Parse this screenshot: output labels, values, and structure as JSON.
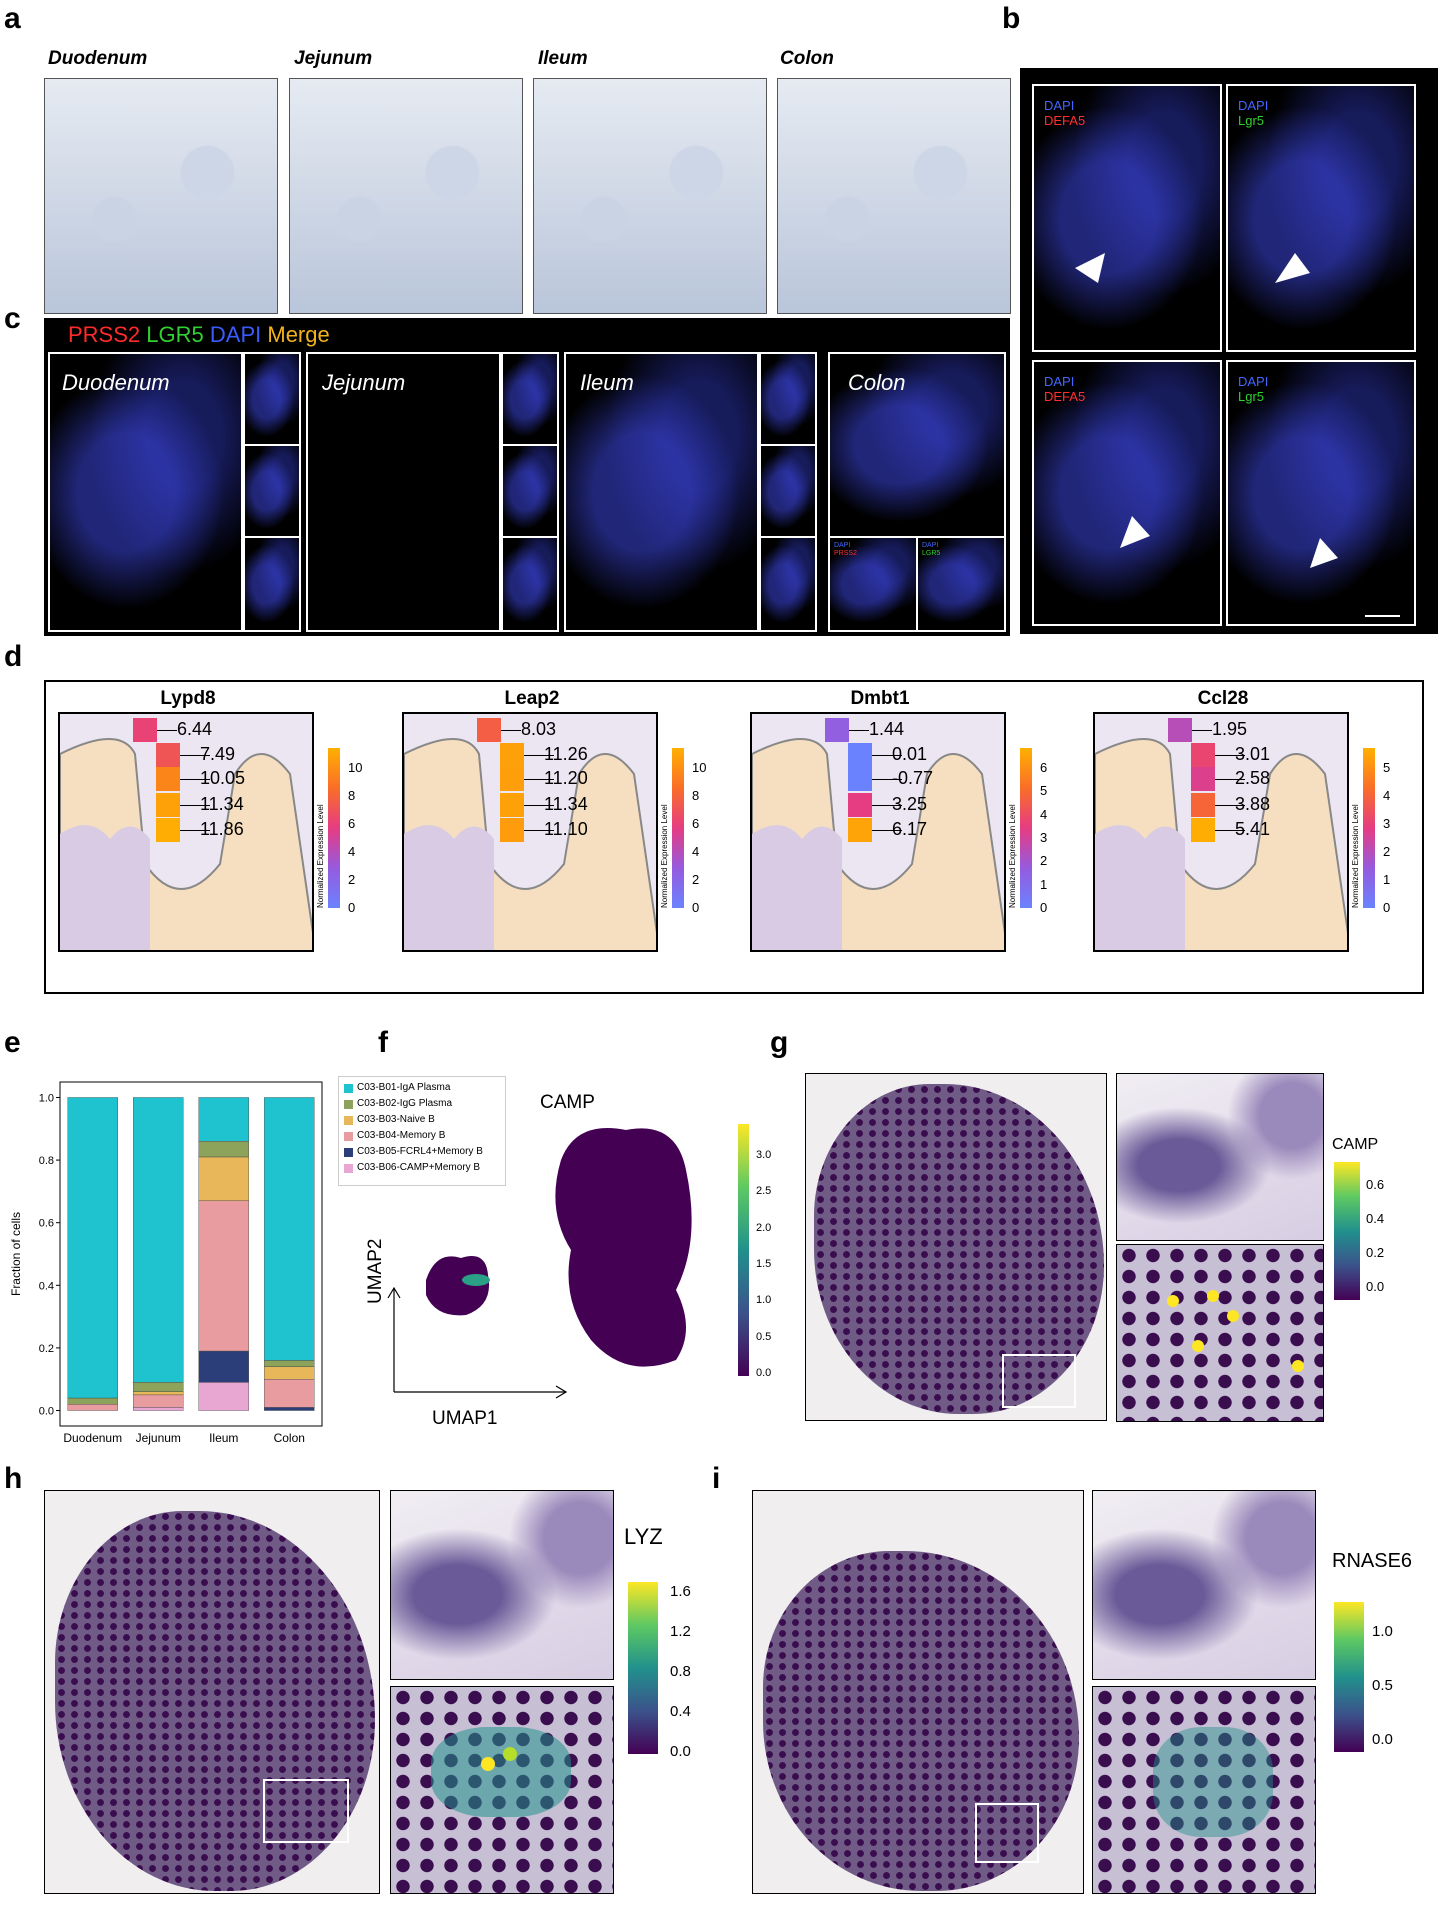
{
  "panels": {
    "a": {
      "label": "a",
      "titles": [
        "Duodenum",
        "Jejunum",
        "Ileum",
        "Colon"
      ]
    },
    "b": {
      "label": "b",
      "insets": [
        {
          "line1": "DAPI",
          "line2": "DEFA5",
          "color2": "#ff3030"
        },
        {
          "line1": "DAPI",
          "line2": "Lgr5",
          "color2": "#30d030"
        },
        {
          "line1": "DAPI",
          "line2": "DEFA5",
          "color2": "#ff3030"
        },
        {
          "line1": "DAPI",
          "line2": "Lgr5",
          "color2": "#30d030"
        }
      ]
    },
    "c": {
      "label": "c",
      "legend": {
        "prss2": "PRSS2",
        "lgr5": "LGR5",
        "dapi": "DAPI",
        "merge": "Merge"
      },
      "titles": [
        "Duodenum",
        "Jejunum",
        "Ileum",
        "Colon"
      ],
      "colon_sub": [
        "DAPI",
        "PRSS2",
        "DAPI",
        "LGR5"
      ]
    },
    "d": {
      "label": "d",
      "colorbar_label": "Normalized Expression Level",
      "genes": [
        {
          "name": "Lypd8",
          "values": [
            6.44,
            7.49,
            10.05,
            11.34,
            11.86
          ],
          "ticks": [
            "10",
            "8",
            "6",
            "4",
            "2",
            "0"
          ],
          "vmax": 12
        },
        {
          "name": "Leap2",
          "values": [
            8.03,
            11.26,
            11.2,
            11.34,
            11.1
          ],
          "ticks": [
            "10",
            "8",
            "6",
            "4",
            "2",
            "0"
          ],
          "vmax": 12
        },
        {
          "name": "Dmbt1",
          "values": [
            1.44,
            0.01,
            -0.77,
            3.25,
            6.17
          ],
          "ticks": [
            "6",
            "5",
            "4",
            "3",
            "2",
            "1",
            "0"
          ],
          "vmax": 6.5
        },
        {
          "name": "Ccl28",
          "values": [
            1.95,
            3.01,
            2.58,
            3.88,
            5.41
          ],
          "ticks": [
            "5",
            "4",
            "3",
            "2",
            "1",
            "0"
          ],
          "vmax": 5.5
        }
      ],
      "value_labels": [
        [
          "6.44",
          "7.49",
          "10.05",
          "11.34",
          "11.86"
        ],
        [
          "8.03",
          "11.26",
          "11.20",
          "11.34",
          "11.10"
        ],
        [
          "1.44",
          "0.01",
          "-0.77",
          "3.25",
          "6.17"
        ],
        [
          "1.95",
          "3.01",
          "2.58",
          "3.88",
          "5.41"
        ]
      ]
    },
    "e": {
      "label": "e",
      "chart_data": {
        "type": "bar",
        "stacked": true,
        "categories": [
          "Duodenum",
          "Jejunum",
          "Ileum",
          "Colon"
        ],
        "ylabel": "Fraction of cells",
        "ylim": [
          0,
          1.0
        ],
        "yticks": [
          "0.0",
          "0.2",
          "0.4",
          "0.6",
          "0.8",
          "1.0"
        ],
        "legend_position": "right",
        "series": [
          {
            "name": "C03-B06-CAMP+Memory B",
            "color": "#e8a6d3",
            "values": [
              0.0,
              0.01,
              0.09,
              0.0
            ]
          },
          {
            "name": "C03-B05-FCRL4+Memory B",
            "color": "#2c3e7a",
            "values": [
              0.0,
              0.0,
              0.1,
              0.01
            ]
          },
          {
            "name": "C03-B04-Memory B",
            "color": "#e89c9f",
            "values": [
              0.02,
              0.04,
              0.48,
              0.09
            ]
          },
          {
            "name": "C03-B03-Naive B",
            "color": "#e7b75a",
            "values": [
              0.0,
              0.01,
              0.14,
              0.04
            ]
          },
          {
            "name": "C03-B02-IgG Plasma",
            "color": "#8da25a",
            "values": [
              0.02,
              0.03,
              0.05,
              0.02
            ]
          },
          {
            "name": "C03-B01-IgA Plasma",
            "color": "#1ec3cf",
            "values": [
              0.96,
              0.91,
              0.14,
              0.84
            ]
          }
        ]
      }
    },
    "f": {
      "label": "f",
      "title": "CAMP",
      "xlabel": "UMAP1",
      "ylabel": "UMAP2",
      "colorbar_ticks": [
        "3.0",
        "2.5",
        "2.0",
        "1.5",
        "1.0",
        "0.5",
        "0.0"
      ]
    },
    "g": {
      "label": "g",
      "gene": "CAMP",
      "ticks": [
        "0.6",
        "0.4",
        "0.2",
        "0.0"
      ]
    },
    "h": {
      "label": "h",
      "gene": "LYZ",
      "ticks": [
        "1.6",
        "1.2",
        "0.8",
        "0.4",
        "0.0"
      ]
    },
    "i": {
      "label": "i",
      "gene": "RNASE6",
      "ticks": [
        "1.0",
        "0.5",
        "0.0"
      ]
    },
    "colors": {
      "viridis_low": "#440154",
      "viridis_high": "#fde725",
      "plasma_low": "#6b82ff",
      "plasma_high": "#ffb000"
    }
  }
}
